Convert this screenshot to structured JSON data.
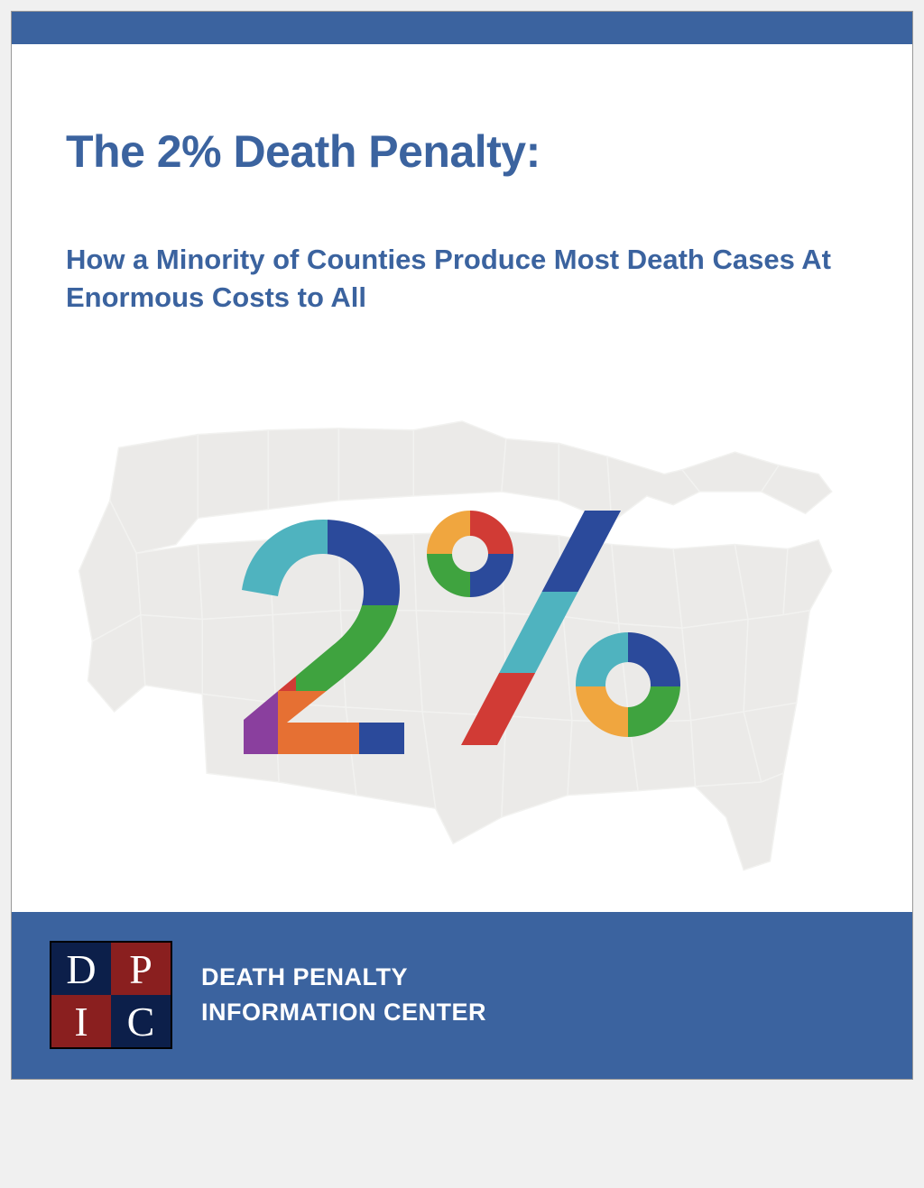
{
  "colors": {
    "brand_blue": "#3b639f",
    "top_bar": "#3b639f",
    "footer_bar": "#3b639f",
    "title": "#3b639f",
    "subtitle": "#3b639f",
    "page_bg": "#ffffff",
    "map_fill": "#ebeae8",
    "map_stroke": "#f2f2f0"
  },
  "title": "The 2% Death Penalty:",
  "subtitle": "How a Minority of Counties Produce Most Death Cases At Enormous Costs to All",
  "graphic": {
    "label": "2%",
    "glyph_colors": {
      "teal": "#4fb3bf",
      "blue": "#2b4a9b",
      "green": "#3fa33f",
      "red": "#d13b35",
      "orange": "#e67033",
      "gold": "#f0a63f",
      "purple": "#8a3f9e"
    }
  },
  "logo": {
    "cells": [
      {
        "letter": "D",
        "bg": "#0c1f4a",
        "fg": "#ffffff"
      },
      {
        "letter": "P",
        "bg": "#8a1f1f",
        "fg": "#ffffff"
      },
      {
        "letter": "I",
        "bg": "#8a1f1f",
        "fg": "#ffffff"
      },
      {
        "letter": "C",
        "bg": "#0c1f4a",
        "fg": "#ffffff"
      }
    ]
  },
  "footer": {
    "line1": "DEATH PENALTY",
    "line2": "INFORMATION CENTER"
  }
}
